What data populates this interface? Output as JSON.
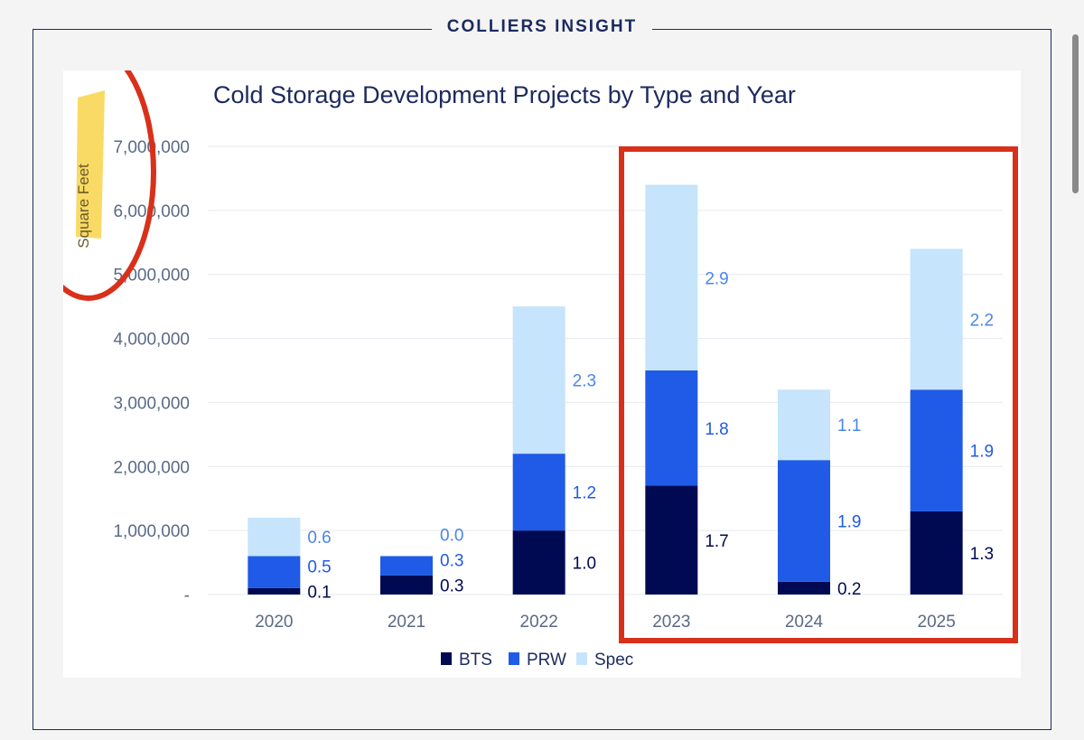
{
  "brand": {
    "label": "COLLIERS INSIGHT"
  },
  "colors": {
    "bts": "#000a52",
    "prw": "#1f5be6",
    "spec": "#c6e4fb",
    "title": "#1c2a5e",
    "axis_text": "#5a6a85",
    "highlight_red": "#d9301a",
    "highlighter_yellow": "#f7d13d"
  },
  "chart_data": {
    "type": "bar",
    "stacked": true,
    "title": "Cold Storage Development Projects by Type and Year",
    "ylabel": "Square Feet",
    "xlabel": "",
    "ylim": [
      0,
      7000000
    ],
    "yticks": [
      0,
      1000000,
      2000000,
      3000000,
      4000000,
      5000000,
      6000000,
      7000000
    ],
    "ytick_labels": [
      "-",
      "1,000,000",
      "2,000,000",
      "3,000,000",
      "4,000,000",
      "5,000,000",
      "6,000,000",
      "7,000,000"
    ],
    "grid": true,
    "legend_position": "bottom-center",
    "categories": [
      "2020",
      "2021",
      "2022",
      "2023",
      "2024",
      "2025"
    ],
    "series": [
      {
        "name": "BTS",
        "values": [
          100000,
          300000,
          1000000,
          1700000,
          200000,
          1300000
        ],
        "labels": [
          "0.1",
          "0.3",
          "1.0",
          "1.7",
          "0.2",
          "1.3"
        ]
      },
      {
        "name": "PRW",
        "values": [
          500000,
          300000,
          1200000,
          1800000,
          1900000,
          1900000
        ],
        "labels": [
          "0.5",
          "0.3",
          "1.2",
          "1.8",
          "1.9",
          "1.9"
        ]
      },
      {
        "name": "Spec",
        "values": [
          600000,
          0,
          2300000,
          2900000,
          1100000,
          2200000
        ],
        "labels": [
          "0.6",
          "0.0",
          "2.3",
          "2.9",
          "1.1",
          "2.2"
        ]
      }
    ],
    "annotations": [
      {
        "type": "circle",
        "target": "ylabel",
        "color": "red"
      },
      {
        "type": "rectangle",
        "target": [
          "2023",
          "2024",
          "2025"
        ],
        "color": "red"
      },
      {
        "type": "highlighter",
        "target": "ylabel",
        "color": "yellow"
      }
    ]
  }
}
